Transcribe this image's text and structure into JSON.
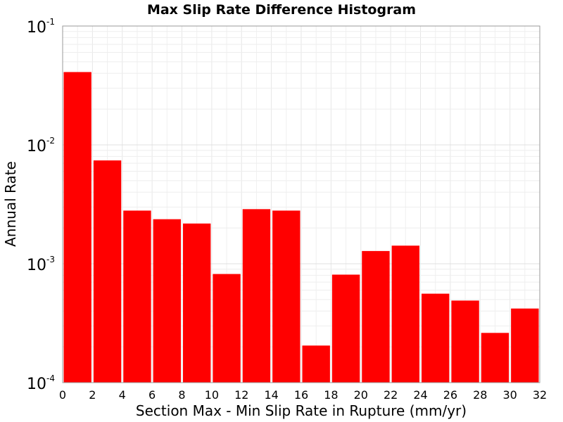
{
  "chart_data": {
    "type": "bar",
    "title": "Max Slip Rate Difference Histogram",
    "xlabel": "Section Max - Min Slip Rate in Rupture (mm/yr)",
    "ylabel": "Annual Rate",
    "xlim": [
      0,
      32
    ],
    "ylim": [
      0.0001,
      0.1
    ],
    "yscale": "log",
    "bin_width": 2,
    "bar_color": "#ff0000",
    "grid": true,
    "x_ticks": [
      "0",
      "2",
      "4",
      "6",
      "8",
      "10",
      "12",
      "14",
      "16",
      "18",
      "20",
      "22",
      "24",
      "26",
      "28",
      "30",
      "32"
    ],
    "y_ticks": [
      {
        "base": "10",
        "exp": "-4"
      },
      {
        "base": "10",
        "exp": "-3"
      },
      {
        "base": "10",
        "exp": "-2"
      },
      {
        "base": "10",
        "exp": "-1"
      }
    ],
    "bins": [
      {
        "x": 1,
        "value": 0.041
      },
      {
        "x": 3,
        "value": 0.0074
      },
      {
        "x": 5,
        "value": 0.0028
      },
      {
        "x": 7,
        "value": 0.00237
      },
      {
        "x": 9,
        "value": 0.00218
      },
      {
        "x": 11,
        "value": 0.00082
      },
      {
        "x": 13,
        "value": 0.00288
      },
      {
        "x": 15,
        "value": 0.0028
      },
      {
        "x": 17,
        "value": 0.000205
      },
      {
        "x": 19,
        "value": 0.00081
      },
      {
        "x": 21,
        "value": 0.00128
      },
      {
        "x": 23,
        "value": 0.00142
      },
      {
        "x": 25,
        "value": 0.00056
      },
      {
        "x": 27,
        "value": 0.00049
      },
      {
        "x": 29,
        "value": 0.000262
      },
      {
        "x": 31,
        "value": 0.00042
      }
    ]
  }
}
